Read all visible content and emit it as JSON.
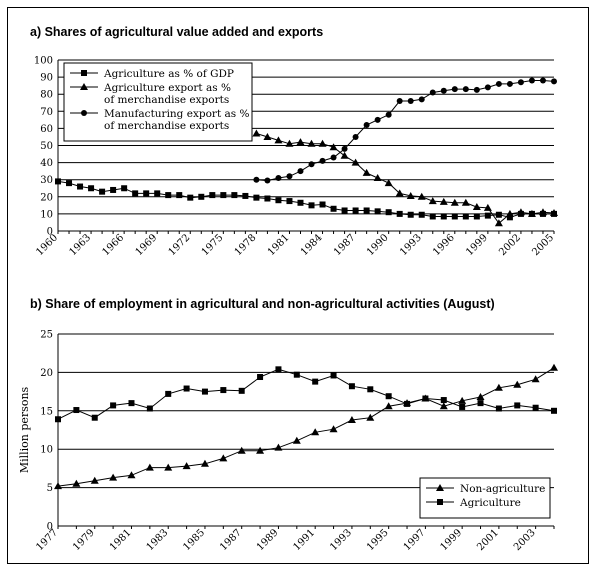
{
  "chart_data": [
    {
      "type": "line",
      "title": "a) Shares of agricultural value added and exports",
      "xlabel": "",
      "ylabel": "",
      "xlim": [
        1960,
        2005
      ],
      "ylim": [
        0,
        100
      ],
      "y_ticks": [
        "0",
        "10",
        "20",
        "30",
        "40",
        "50",
        "60",
        "70",
        "80",
        "90",
        "100"
      ],
      "x_ticks": [
        "1960",
        "1963",
        "1966",
        "1969",
        "1972",
        "1975",
        "1978",
        "1981",
        "1984",
        "1987",
        "1990",
        "1993",
        "1996",
        "1999",
        "2002",
        "2005"
      ],
      "grid": "horizontal",
      "legend_position": "top-left",
      "series": [
        {
          "name": "Agriculture as % of GDP",
          "marker": "square",
          "x": [
            1960,
            1961,
            1962,
            1963,
            1964,
            1965,
            1966,
            1967,
            1968,
            1969,
            1970,
            1971,
            1972,
            1973,
            1974,
            1975,
            1976,
            1977,
            1978,
            1979,
            1980,
            1981,
            1982,
            1983,
            1984,
            1985,
            1986,
            1987,
            1988,
            1989,
            1990,
            1991,
            1992,
            1993,
            1994,
            1995,
            1996,
            1997,
            1998,
            1999,
            2000,
            2001,
            2002,
            2003,
            2004,
            2005
          ],
          "values": [
            29,
            28,
            26,
            25,
            23,
            24,
            25,
            22,
            22,
            22,
            21,
            21,
            19.5,
            20,
            21,
            21,
            21,
            20.5,
            19.5,
            19,
            18,
            17.5,
            16.5,
            15,
            15.5,
            13,
            12,
            12,
            12,
            11.5,
            11,
            10,
            9.5,
            9.5,
            8.5,
            8.5,
            8.5,
            8.5,
            8.5,
            9,
            9.5,
            8,
            10,
            10,
            10,
            10
          ]
        },
        {
          "name": "Agriculture export as % of merchandise exports",
          "marker": "triangle",
          "x": [
            1978,
            1979,
            1980,
            1981,
            1982,
            1983,
            1984,
            1985,
            1986,
            1987,
            1988,
            1989,
            1990,
            1991,
            1992,
            1993,
            1994,
            1995,
            1996,
            1997,
            1998,
            1999,
            2000,
            2001,
            2002,
            2003,
            2004,
            2005
          ],
          "values": [
            57,
            55,
            53,
            51,
            52,
            51,
            51,
            49,
            44,
            40,
            34,
            31,
            28,
            22,
            20.5,
            20,
            17.5,
            17,
            16.5,
            16.5,
            14,
            13.5,
            4.5,
            10,
            11,
            10,
            11,
            10.5
          ]
        },
        {
          "name": "Manufacturing export as % of merchandise exports",
          "marker": "circle",
          "x": [
            1978,
            1979,
            1980,
            1981,
            1982,
            1983,
            1984,
            1985,
            1986,
            1987,
            1988,
            1989,
            1990,
            1991,
            1992,
            1993,
            1994,
            1995,
            1996,
            1997,
            1998,
            1999,
            2000,
            2001,
            2002,
            2003,
            2004,
            2005
          ],
          "values": [
            30,
            29.5,
            31,
            32,
            35,
            39,
            41,
            43,
            48,
            55,
            62,
            65,
            68,
            76,
            76,
            77,
            81,
            82,
            83,
            83,
            82.5,
            84,
            86,
            86,
            87,
            88,
            88,
            87.5
          ]
        }
      ]
    },
    {
      "type": "line",
      "title": "b) Share of employment in agricultural and non-agricultural activities (August)",
      "xlabel": "",
      "ylabel": "Million persons",
      "xlim": [
        1977,
        2004
      ],
      "ylim": [
        0,
        25
      ],
      "y_ticks": [
        "0",
        "5",
        "10",
        "15",
        "20",
        "25"
      ],
      "x_ticks": [
        "1977",
        "1979",
        "1981",
        "1983",
        "1985",
        "1987",
        "1989",
        "1991",
        "1993",
        "1995",
        "1997",
        "1999",
        "2001",
        "2003"
      ],
      "grid": "horizontal",
      "legend_position": "bottom-right",
      "series": [
        {
          "name": "Non-agriculture",
          "marker": "triangle",
          "x": [
            1977,
            1978,
            1979,
            1980,
            1981,
            1982,
            1983,
            1984,
            1985,
            1986,
            1987,
            1988,
            1989,
            1990,
            1991,
            1992,
            1993,
            1994,
            1995,
            1996,
            1997,
            1998,
            1999,
            2000,
            2001,
            2002,
            2003,
            2004
          ],
          "values": [
            5.2,
            5.5,
            5.9,
            6.3,
            6.6,
            7.6,
            7.6,
            7.8,
            8.1,
            8.8,
            9.8,
            9.8,
            10.2,
            11.1,
            12.2,
            12.6,
            13.8,
            14.1,
            15.6,
            16.0,
            16.6,
            15.6,
            16.3,
            16.8,
            18.0,
            18.4,
            19.1,
            20.6
          ]
        },
        {
          "name": "Agriculture",
          "marker": "square",
          "x": [
            1977,
            1978,
            1979,
            1980,
            1981,
            1982,
            1983,
            1984,
            1985,
            1986,
            1987,
            1988,
            1989,
            1990,
            1991,
            1992,
            1993,
            1994,
            1995,
            1996,
            1997,
            1998,
            1999,
            2000,
            2001,
            2002,
            2003,
            2004
          ],
          "values": [
            13.9,
            15.1,
            14.1,
            15.7,
            16.0,
            15.3,
            17.2,
            17.9,
            17.5,
            17.7,
            17.6,
            19.4,
            20.4,
            19.7,
            18.8,
            19.6,
            18.2,
            17.8,
            16.9,
            15.9,
            16.6,
            16.4,
            15.5,
            16.0,
            15.3,
            15.7,
            15.4,
            15.0
          ]
        }
      ]
    }
  ]
}
